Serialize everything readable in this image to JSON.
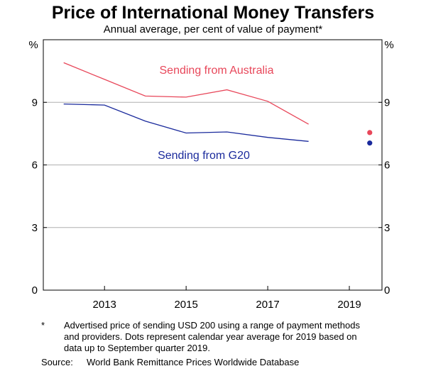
{
  "chart_data": {
    "type": "line",
    "title": "Price of International Money Transfers",
    "subtitle": "Annual average, per cent of value of payment*",
    "y_unit_label": "%",
    "ylim": [
      0,
      12
    ],
    "yticks": [
      0,
      3,
      6,
      9
    ],
    "xlim": [
      2011.5,
      2019.8
    ],
    "xticks": [
      2013,
      2015,
      2017,
      2019
    ],
    "series": [
      {
        "name": "Sending from Australia",
        "color": "#e8475a",
        "x": [
          2012,
          2013,
          2014,
          2015,
          2016,
          2017,
          2018
        ],
        "values": [
          10.9,
          10.1,
          9.3,
          9.25,
          9.6,
          9.05,
          7.95
        ],
        "dot": {
          "x": 2019.5,
          "value": 7.55
        }
      },
      {
        "name": "Sending from G20",
        "color": "#1a2a9c",
        "x": [
          2012,
          2013,
          2014,
          2015,
          2016,
          2017,
          2018
        ],
        "values": [
          8.92,
          8.87,
          8.1,
          7.53,
          7.58,
          7.32,
          7.13
        ],
        "dot": {
          "x": 2019.5,
          "value": 7.05
        }
      }
    ]
  },
  "footnote": {
    "marker": "*",
    "text": "Advertised price of sending USD 200 using a range of payment methods and providers. Dots represent calendar year average for 2019 based on data up to September quarter 2019."
  },
  "source": {
    "label": "Source:",
    "text": "World Bank Remittance Prices Worldwide Database"
  }
}
